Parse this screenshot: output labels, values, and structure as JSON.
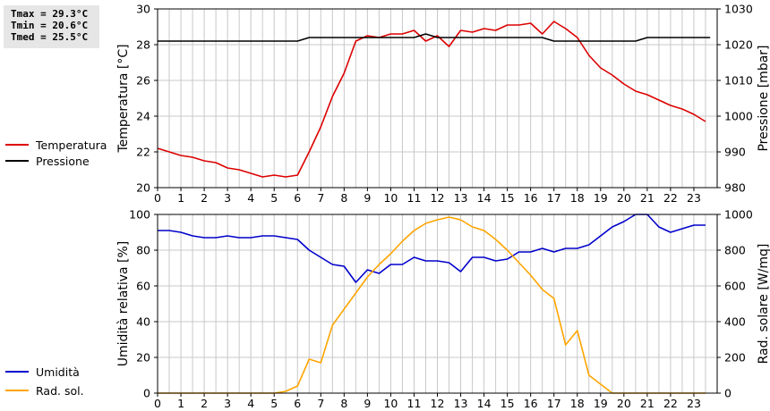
{
  "stats": {
    "tmax": "Tmax = 29.3°C",
    "tmin": "Tmin = 20.6°C",
    "tmed": "Tmed = 25.5°C"
  },
  "colors": {
    "temperature": "#dd0000",
    "pressure": "#000000",
    "humidity": "#0000cc",
    "radiation": "#ffa500",
    "grid": "#c8c8c8"
  },
  "chart_data": [
    {
      "type": "line",
      "ylabel": "Temperatura [°C]",
      "y2label": "Pressione [mbar]",
      "xlim": [
        0,
        24
      ],
      "ylim": [
        20,
        30
      ],
      "y2lim": [
        980,
        1030
      ],
      "x_ticks": [
        0,
        1,
        2,
        3,
        4,
        5,
        6,
        7,
        8,
        9,
        10,
        11,
        12,
        13,
        14,
        15,
        16,
        17,
        18,
        19,
        20,
        21,
        22,
        23
      ],
      "y_ticks": [
        20,
        22,
        24,
        26,
        28,
        30
      ],
      "y2_ticks": [
        980,
        990,
        1000,
        1010,
        1020,
        1030
      ],
      "grid": true,
      "legend_position": "left",
      "series": [
        {
          "name": "Temperatura",
          "axis": "left",
          "color": "#dd0000",
          "x": [
            0,
            0.5,
            1,
            1.5,
            2,
            2.5,
            3,
            3.5,
            4,
            4.5,
            5,
            5.5,
            6,
            6.5,
            7,
            7.5,
            8,
            8.5,
            9,
            9.5,
            10,
            10.5,
            11,
            11.5,
            12,
            12.5,
            13,
            13.5,
            14,
            14.5,
            15,
            15.5,
            16,
            16.5,
            17,
            17.5,
            18,
            18.5,
            19,
            19.5,
            20,
            20.5,
            21,
            21.5,
            22,
            22.5,
            23,
            23.5
          ],
          "y": [
            22.2,
            22.0,
            21.8,
            21.7,
            21.5,
            21.4,
            21.1,
            21.0,
            20.8,
            20.6,
            20.7,
            20.6,
            20.7,
            22.0,
            23.4,
            25.1,
            26.4,
            28.2,
            28.5,
            28.4,
            28.6,
            28.6,
            28.8,
            28.2,
            28.5,
            27.9,
            28.8,
            28.7,
            28.9,
            28.8,
            29.1,
            29.1,
            29.2,
            28.6,
            29.3,
            28.9,
            28.4,
            27.4,
            26.7,
            26.3,
            25.8,
            25.4,
            25.2,
            24.9,
            24.6,
            24.4,
            24.1,
            23.7
          ]
        },
        {
          "name": "Pressione",
          "axis": "right",
          "color": "#000000",
          "x": [
            0,
            6,
            6.5,
            11,
            11.5,
            12,
            16,
            16.5,
            17,
            20.5,
            21,
            23.7
          ],
          "y": [
            1021,
            1021,
            1022,
            1022,
            1023,
            1022,
            1022,
            1022,
            1021,
            1021,
            1022,
            1022
          ]
        }
      ]
    },
    {
      "type": "line",
      "ylabel": "Umidità relativa [%]",
      "y2label": "Rad. solare [W/mq]",
      "xlim": [
        0,
        24
      ],
      "ylim": [
        0,
        100
      ],
      "y2lim": [
        0,
        1000
      ],
      "x_ticks": [
        0,
        1,
        2,
        3,
        4,
        5,
        6,
        7,
        8,
        9,
        10,
        11,
        12,
        13,
        14,
        15,
        16,
        17,
        18,
        19,
        20,
        21,
        22,
        23
      ],
      "y_ticks": [
        0,
        20,
        40,
        60,
        80,
        100
      ],
      "y2_ticks": [
        0,
        200,
        400,
        600,
        800,
        1000
      ],
      "grid": true,
      "legend_position": "left",
      "series": [
        {
          "name": "Umidità",
          "axis": "left",
          "color": "#0000cc",
          "x": [
            0,
            0.5,
            1,
            1.5,
            2,
            2.5,
            3,
            3.5,
            4,
            4.5,
            5,
            5.5,
            6,
            6.5,
            7,
            7.5,
            8,
            8.5,
            9,
            9.5,
            10,
            10.5,
            11,
            11.5,
            12,
            12.5,
            13,
            13.5,
            14,
            14.5,
            15,
            15.5,
            16,
            16.5,
            17,
            17.5,
            18,
            18.5,
            19,
            19.5,
            20,
            20.5,
            21,
            21.5,
            22,
            22.5,
            23,
            23.5
          ],
          "y": [
            91,
            91,
            90,
            88,
            87,
            87,
            88,
            87,
            87,
            88,
            88,
            87,
            86,
            80,
            76,
            72,
            71,
            62,
            69,
            67,
            72,
            72,
            76,
            74,
            74,
            73,
            68,
            76,
            76,
            74,
            75,
            79,
            79,
            81,
            79,
            81,
            81,
            83,
            88,
            93,
            96,
            100,
            100,
            93,
            90,
            92,
            94,
            94
          ]
        },
        {
          "name": "Rad. sol.",
          "axis": "right",
          "color": "#ffa500",
          "x": [
            0,
            0.5,
            1,
            1.5,
            2,
            2.5,
            3,
            3.5,
            4,
            4.5,
            5,
            5.5,
            6,
            6.5,
            7,
            7.5,
            8,
            8.5,
            9,
            9.5,
            10,
            10.5,
            11,
            11.5,
            12,
            12.5,
            13,
            13.5,
            14,
            14.5,
            15,
            15.5,
            16,
            16.5,
            17,
            17.5,
            18,
            18.5,
            19,
            19.5,
            20,
            20.5,
            21,
            21.5,
            22,
            22.5,
            23,
            23.5
          ],
          "y": [
            0,
            0,
            0,
            0,
            0,
            0,
            0,
            0,
            0,
            0,
            0,
            10,
            40,
            190,
            170,
            380,
            470,
            560,
            650,
            720,
            780,
            850,
            910,
            950,
            970,
            985,
            970,
            930,
            910,
            860,
            800,
            730,
            660,
            580,
            530,
            270,
            350,
            100,
            50,
            0,
            0,
            0,
            0,
            0,
            0,
            0,
            0,
            0
          ]
        }
      ]
    }
  ]
}
